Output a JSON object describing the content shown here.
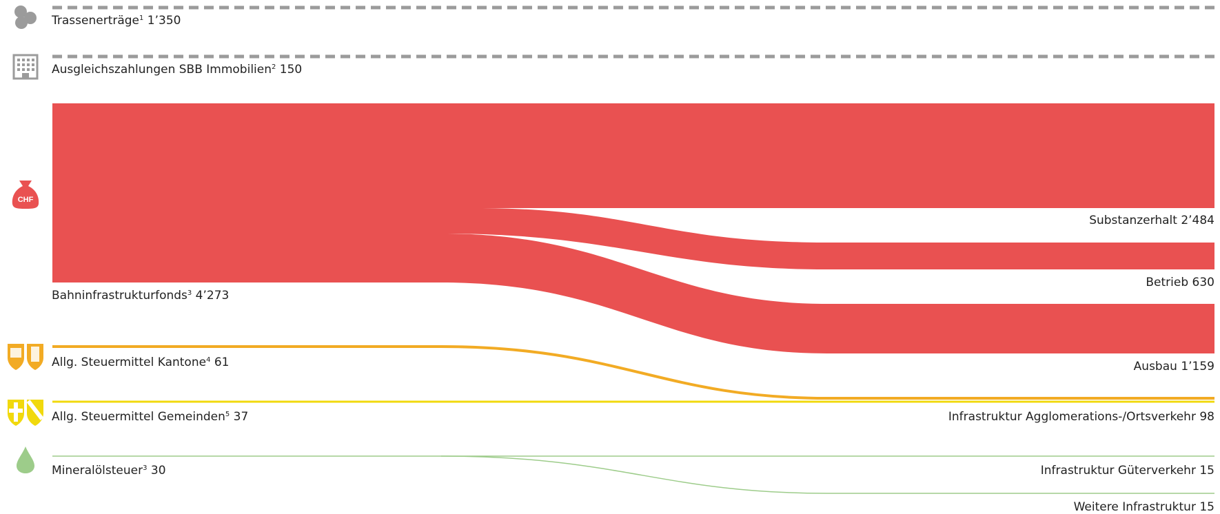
{
  "colors": {
    "fund": "#e95151",
    "kantone": "#f2ab24",
    "gemeinden": "#f1d90d",
    "mineral": "#9dcc8a",
    "dashed": "#9b9b9b",
    "icon_grey": "#9b9b9b",
    "label": "#222222"
  },
  "icons": [
    "coins-icon",
    "building-icon",
    "money-bag-icon",
    "canton-shields-icon",
    "municipality-shields-icon",
    "oil-drop-icon"
  ],
  "icon_labels": {
    "money_bag": "CHF"
  },
  "sources": [
    {
      "key": "trassen",
      "label": "Trassenerträge",
      "note": "1",
      "value": "1’350",
      "amount": 1350
    },
    {
      "key": "immobilien",
      "label": "Ausgleichszahlungen SBB Immobilien",
      "note": "2",
      "value": "150",
      "amount": 150
    },
    {
      "key": "fonds",
      "label": "Bahninfrastrukturfonds",
      "note": "3",
      "value": "4’273",
      "amount": 4273
    },
    {
      "key": "kantone",
      "label": "Allg. Steuermittel Kantone",
      "note": "4",
      "value": "61",
      "amount": 61
    },
    {
      "key": "gemeinden",
      "label": "Allg. Steuermittel Gemeinden",
      "note": "5",
      "value": "37",
      "amount": 37
    },
    {
      "key": "mineral",
      "label": "Mineralölsteuer",
      "note": "3",
      "value": "30",
      "amount": 30
    }
  ],
  "targets": [
    {
      "key": "substanz",
      "label": "Substanzerhalt",
      "value": "2’484",
      "amount": 2484
    },
    {
      "key": "betrieb",
      "label": "Betrieb",
      "value": "630",
      "amount": 630
    },
    {
      "key": "ausbau",
      "label": "Ausbau",
      "value": "1’159",
      "amount": 1159
    },
    {
      "key": "agglo",
      "label": "Infrastruktur Agglomerations-/Ortsverkehr",
      "value": "98",
      "amount": 98
    },
    {
      "key": "gueter",
      "label": "Infrastruktur Güterverkehr",
      "value": "15",
      "amount": 15
    },
    {
      "key": "weitere",
      "label": "Weitere Infrastruktur",
      "value": "15",
      "amount": 15
    }
  ],
  "flows": [
    {
      "from": "fonds",
      "to": "substanz",
      "amount": 2484
    },
    {
      "from": "fonds",
      "to": "betrieb",
      "amount": 630
    },
    {
      "from": "fonds",
      "to": "ausbau",
      "amount": 1159
    },
    {
      "from": "kantone",
      "to": "agglo",
      "amount": 61
    },
    {
      "from": "gemeinden",
      "to": "agglo",
      "amount": 37
    },
    {
      "from": "mineral",
      "to": "gueter",
      "amount": 15
    },
    {
      "from": "mineral",
      "to": "weitere",
      "amount": 15
    }
  ]
}
